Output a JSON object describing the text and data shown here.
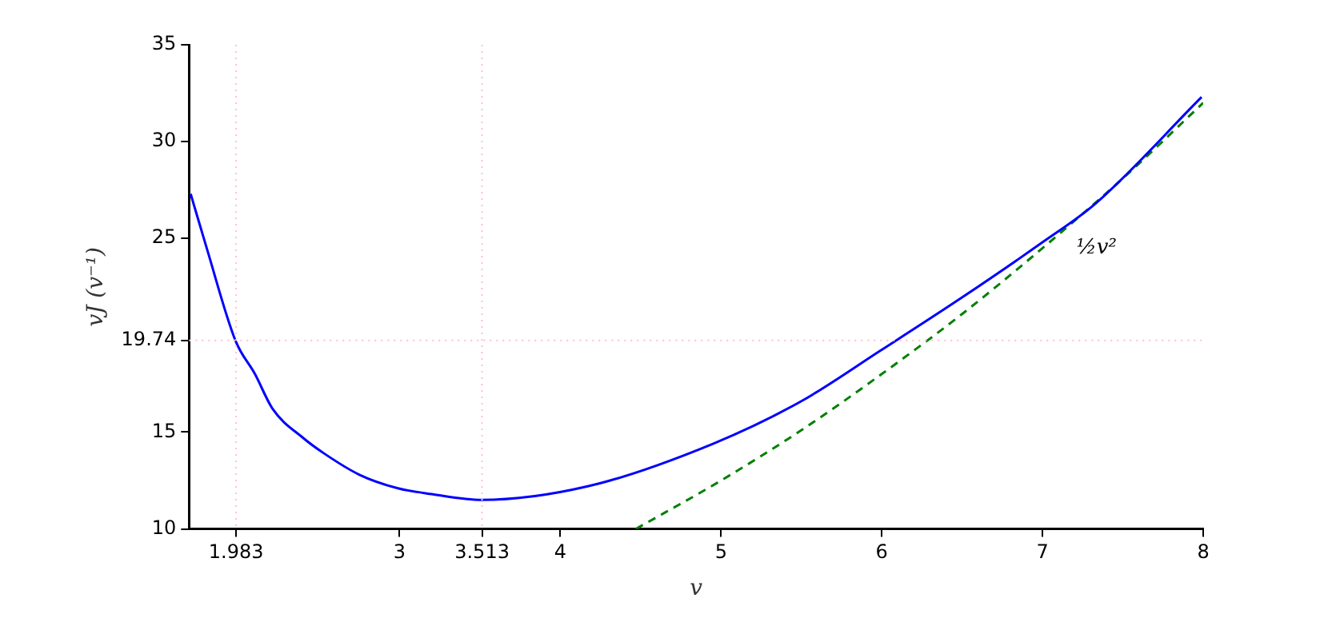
{
  "chart_data": {
    "type": "line",
    "xlabel": "v",
    "ylabel": "vJ (v⁻¹)",
    "xlim": [
      1.69,
      8
    ],
    "ylim": [
      10,
      35
    ],
    "xticks": [
      1.983,
      3,
      3.513,
      4,
      5,
      6,
      7,
      8
    ],
    "yticks": [
      10,
      15,
      19.74,
      25,
      30,
      35
    ],
    "grid": false,
    "legend": false,
    "marker": "none",
    "series": [
      {
        "color": "#0000ff",
        "line_style": "solid",
        "x": [
          1.7,
          1.8,
          1.98,
          2.1,
          2.21,
          2.4,
          2.53,
          2.75,
          2.99,
          3.2,
          3.51,
          4.17,
          4.95,
          5.5,
          5.99,
          6.49,
          7.0,
          7.33,
          7.99
        ],
        "values": [
          27.3,
          24.5,
          19.7,
          18.0,
          16.2,
          14.7,
          13.9,
          12.8,
          12.1,
          11.8,
          11.5,
          12.2,
          14.4,
          16.6,
          19.2,
          21.9,
          24.8,
          26.8,
          32.3
        ]
      },
      {
        "color": "#008000",
        "line_style": "dashed",
        "x": [
          4.47,
          5,
          5.5,
          6,
          6.5,
          7,
          7.5,
          8
        ],
        "values": [
          10,
          12.5,
          15.1,
          18,
          21.1,
          24.5,
          28.1,
          32
        ]
      }
    ],
    "ref_lines": [
      {
        "axis": "x",
        "value": 1.983,
        "color": "#ffc0cb",
        "line_style": "dotted"
      },
      {
        "axis": "x",
        "value": 3.513,
        "color": "#ffc0cb",
        "line_style": "dotted"
      },
      {
        "axis": "y",
        "value": 19.74,
        "color": "#ffc0cb",
        "line_style": "dotted"
      }
    ],
    "annotations": [
      "½v²"
    ]
  }
}
